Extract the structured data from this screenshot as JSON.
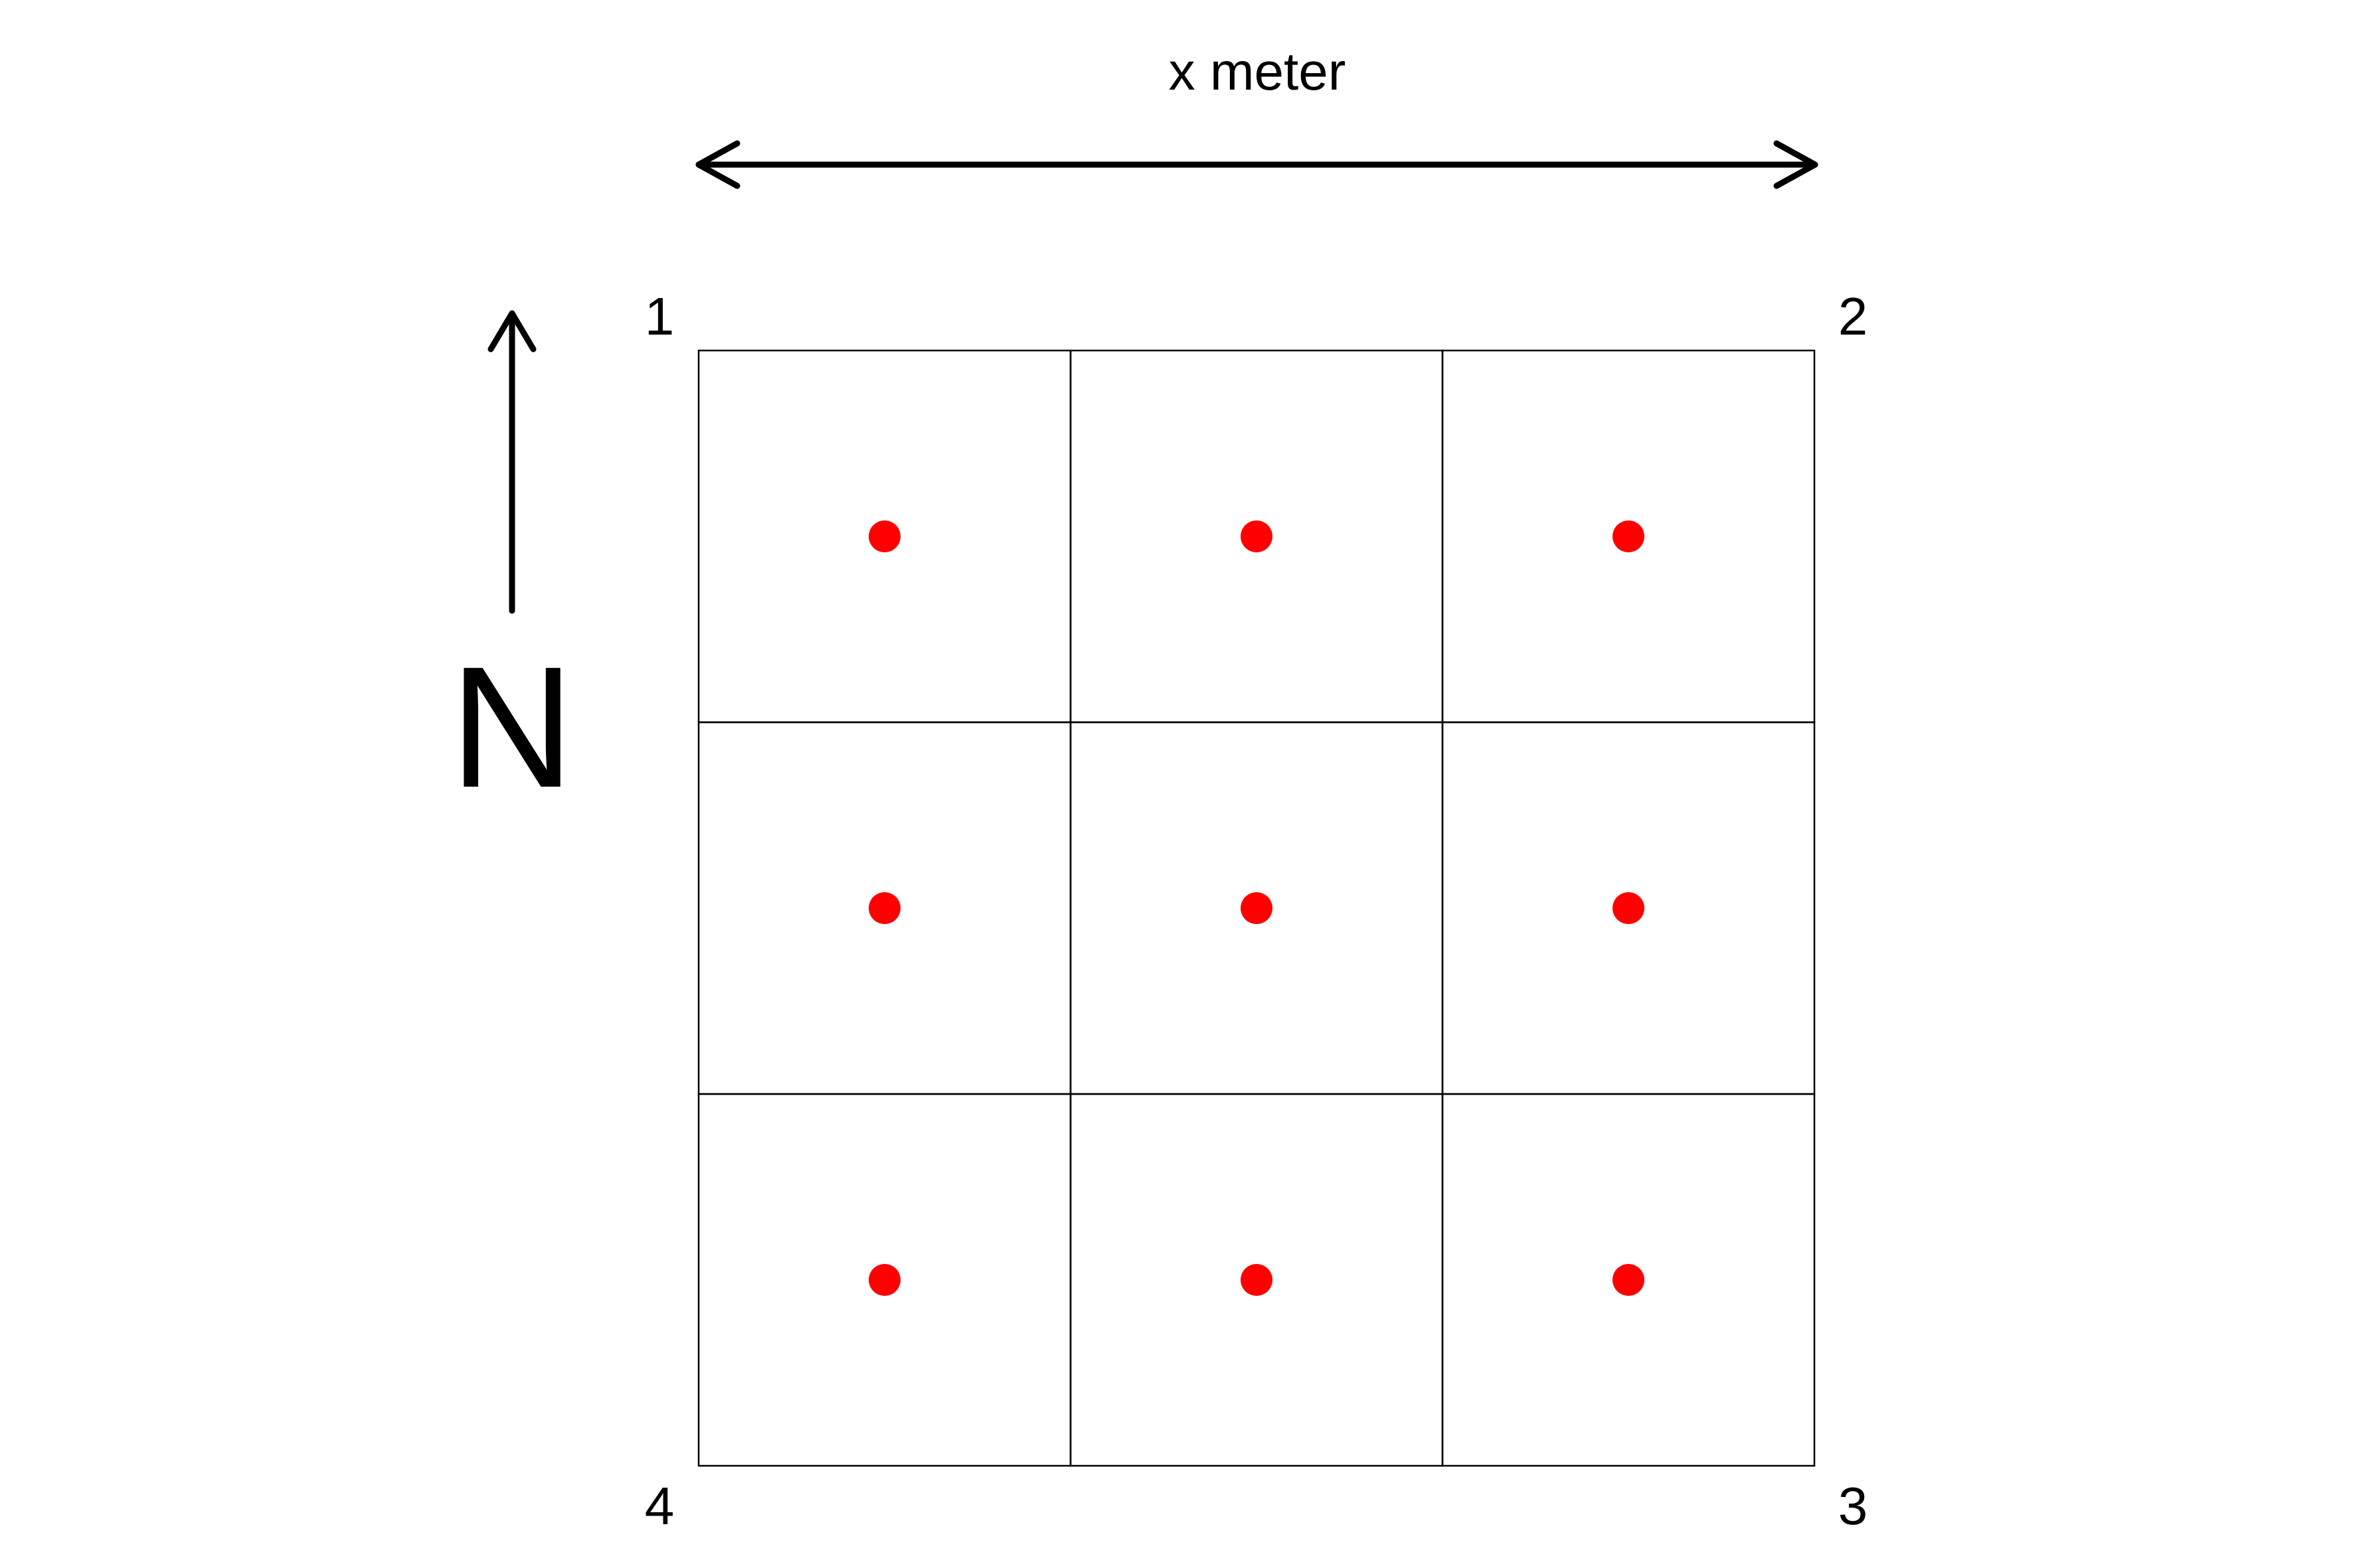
{
  "width_label": "x meter",
  "north_label": "N",
  "corners": {
    "top_left": "1",
    "top_right": "2",
    "bottom_right": "3",
    "bottom_left": "4"
  },
  "grid": {
    "rows": 3,
    "cols": 3,
    "sample_points_per_cell": 1
  },
  "colors": {
    "line": "#000000",
    "point": "#ff0000",
    "background": "#ffffff"
  }
}
